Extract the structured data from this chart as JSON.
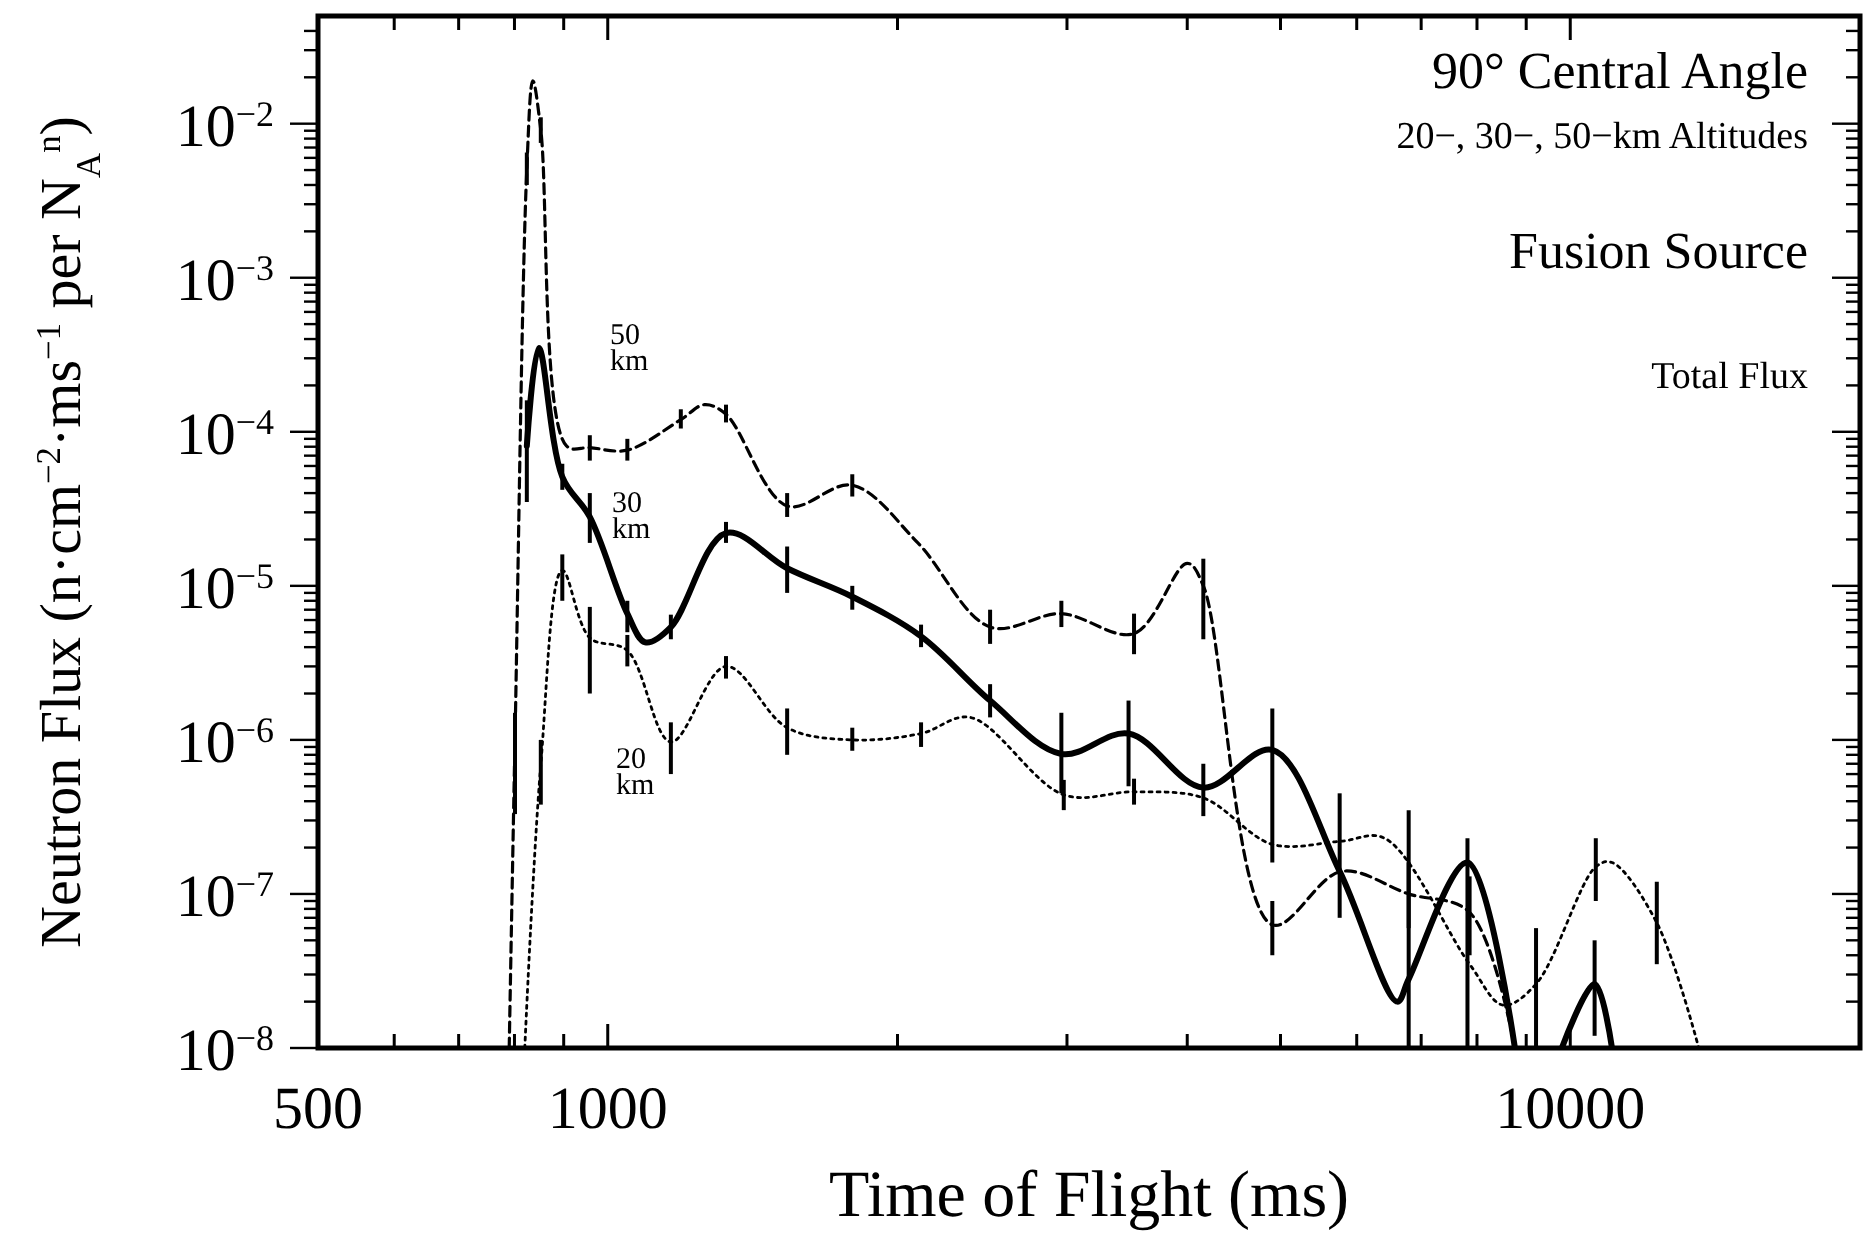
{
  "chart_data": {
    "type": "line",
    "xlabel": "Time of Flight (ms)",
    "ylabel": "Neutron Flux (n·cm$^{−2}$·ms$^{−1}$ per N$_{A}$$^{n}$)",
    "log": "xy",
    "grid": false,
    "xlim": [
      500,
      20000
    ],
    "xticks": [
      500,
      {
        "value": 600,
        "label": null
      },
      {
        "value": 700,
        "label": null
      },
      {
        "value": 800,
        "label": null
      },
      {
        "value": 900,
        "label": null
      },
      1000,
      {
        "value": 2000,
        "label": null
      },
      {
        "value": 3000,
        "label": null
      },
      {
        "value": 4000,
        "label": null
      },
      {
        "value": 5000,
        "label": null
      },
      {
        "value": 6000,
        "label": null
      },
      {
        "value": 7000,
        "label": null
      },
      {
        "value": 8000,
        "label": null
      },
      {
        "value": 9000,
        "label": null
      },
      10000
    ],
    "ylim": [
      1e-08,
      0.05
    ],
    "yticks": [
      {
        "value": 1e-08,
        "label": "10$^{−8}$"
      },
      {
        "value": 2e-08,
        "label": null
      },
      {
        "value": 3e-08,
        "label": null
      },
      {
        "value": 4e-08,
        "label": null
      },
      {
        "value": 5e-08,
        "label": null
      },
      {
        "value": 6e-08,
        "label": null
      },
      {
        "value": 7e-08,
        "label": null
      },
      {
        "value": 8e-08,
        "label": null
      },
      {
        "value": 9e-08,
        "label": null
      },
      {
        "value": 1e-07,
        "label": "10$^{−7}$"
      },
      {
        "value": 2e-07,
        "label": null
      },
      {
        "value": 3e-07,
        "label": null
      },
      {
        "value": 4e-07,
        "label": null
      },
      {
        "value": 5e-07,
        "label": null
      },
      {
        "value": 6e-07,
        "label": null
      },
      {
        "value": 7e-07,
        "label": null
      },
      {
        "value": 8e-07,
        "label": null
      },
      {
        "value": 9e-07,
        "label": null
      },
      {
        "value": 1e-06,
        "label": "10$^{−6}$"
      },
      {
        "value": 2e-06,
        "label": null
      },
      {
        "value": 3e-06,
        "label": null
      },
      {
        "value": 4e-06,
        "label": null
      },
      {
        "value": 5e-06,
        "label": null
      },
      {
        "value": 6e-06,
        "label": null
      },
      {
        "value": 7e-06,
        "label": null
      },
      {
        "value": 8e-06,
        "label": null
      },
      {
        "value": 9e-06,
        "label": null
      },
      {
        "value": 1e-05,
        "label": "10$^{−5}$"
      },
      {
        "value": 2e-05,
        "label": null
      },
      {
        "value": 3e-05,
        "label": null
      },
      {
        "value": 4e-05,
        "label": null
      },
      {
        "value": 5e-05,
        "label": null
      },
      {
        "value": 6e-05,
        "label": null
      },
      {
        "value": 7e-05,
        "label": null
      },
      {
        "value": 8e-05,
        "label": null
      },
      {
        "value": 9e-05,
        "label": null
      },
      {
        "value": 0.0001,
        "label": "10$^{−4}$"
      },
      {
        "value": 0.0002,
        "label": null
      },
      {
        "value": 0.0003,
        "label": null
      },
      {
        "value": 0.0004,
        "label": null
      },
      {
        "value": 0.0005,
        "label": null
      },
      {
        "value": 0.0006,
        "label": null
      },
      {
        "value": 0.0007,
        "label": null
      },
      {
        "value": 0.0008,
        "label": null
      },
      {
        "value": 0.0009,
        "label": null
      },
      {
        "value": 0.001,
        "label": "10$^{−3}$"
      },
      {
        "value": 0.002,
        "label": null
      },
      {
        "value": 0.003,
        "label": null
      },
      {
        "value": 0.004,
        "label": null
      },
      {
        "value": 0.005,
        "label": null
      },
      {
        "value": 0.006,
        "label": null
      },
      {
        "value": 0.007,
        "label": null
      },
      {
        "value": 0.008,
        "label": null
      },
      {
        "value": 0.009,
        "label": null
      },
      {
        "value": 0.01,
        "label": "10$^{−2}$"
      },
      {
        "value": 0.02,
        "label": null
      },
      {
        "value": 0.03,
        "label": null
      },
      {
        "value": 0.04,
        "label": null
      }
    ],
    "annotations": [
      "90° Central Angle",
      "20−, 30−, 50−km Altitudes",
      "Fusion Source",
      "Total Flux"
    ],
    "series": [
      {
        "name": "50 km",
        "color": "#000000",
        "line_style": "dashed",
        "x": [
          790,
          801,
          824,
          836,
          852,
          906,
          958,
          1048,
          1191,
          1260,
          1327,
          1536,
          1795,
          2100,
          2496,
          2960,
          3522,
          4000,
          4157,
          4903,
          5780,
          6794,
          7860,
          8760
        ],
        "values": [
          1e-08,
          1e-06,
          0.0051,
          0.019,
          0.0091,
          8.1e-05,
          7.9e-05,
          7.6e-05,
          0.00012,
          0.00015,
          0.00013,
          3.3e-05,
          4.5e-05,
          1.9e-05,
          5.4e-06,
          6.6e-06,
          4.9e-06,
          1.4e-05,
          1e-05,
          6.3e-08,
          1.4e-07,
          1e-07,
          7.6e-08,
          1e-08
        ],
        "errors": [
          null,
          [
            3.3e-07,
            1.5e-06
          ],
          [
            0.004,
            0.0065
          ],
          null,
          [
            0.0075,
            0.011
          ],
          null,
          [
            6.5e-05,
            9.5e-05
          ],
          [
            6.5e-05,
            9e-05
          ],
          [
            0.000105,
            0.00014
          ],
          null,
          [
            0.000115,
            0.00015
          ],
          [
            2.8e-05,
            4e-05
          ],
          [
            3.8e-05,
            5.3e-05
          ],
          null,
          [
            4.2e-06,
            7e-06
          ],
          [
            5.4e-06,
            8e-06
          ],
          [
            3.6e-06,
            6.6e-06
          ],
          null,
          [
            4.5e-06,
            1.5e-05
          ],
          [
            4e-08,
            9e-08
          ],
          null,
          [
            6e-08,
            1.6e-07
          ],
          [
            4e-08,
            1.3e-07
          ],
          null
        ]
      },
      {
        "name": "30 km",
        "color": "#000000",
        "line_style": "solid",
        "x": [
          824,
          848,
          897,
          958,
          1048,
          1094,
          1163,
          1327,
          1536,
          1795,
          2116,
          2496,
          2960,
          3476,
          4157,
          4903,
          5760,
          6610,
          6794,
          7820,
          8760,
          9300,
          9800,
          10600,
          11050
        ],
        "values": [
          8.1e-05,
          0.00035,
          5.1e-05,
          2.8e-05,
          6.6e-06,
          4.3e-06,
          5.4e-06,
          2.2e-05,
          1.3e-05,
          8.5e-06,
          4.7e-06,
          1.8e-06,
          8.1e-07,
          1.1e-06,
          4.9e-07,
          8.6e-07,
          1.4e-07,
          2e-08,
          2.8e-08,
          1.6e-07,
          1e-08,
          null,
          1e-08,
          2.6e-08,
          1e-08
        ],
        "errors": [
          [
            3.5e-05,
            0.00016
          ],
          null,
          [
            4.2e-05,
            6.2e-05
          ],
          [
            1.9e-05,
            4e-05
          ],
          [
            5e-06,
            8e-06
          ],
          null,
          [
            4.5e-06,
            6.5e-06
          ],
          [
            1.9e-05,
            2.6e-05
          ],
          [
            9e-06,
            1.8e-05
          ],
          [
            7e-06,
            1e-05
          ],
          [
            4e-06,
            5.6e-06
          ],
          [
            1.4e-06,
            2.3e-06
          ],
          [
            4.5e-07,
            1.5e-06
          ],
          [
            5e-07,
            1.8e-06
          ],
          [
            3.2e-07,
            7e-07
          ],
          [
            1.6e-07,
            1.6e-06
          ],
          [
            7e-08,
            4.5e-07
          ],
          null,
          [
            1e-08,
            3.5e-07
          ],
          [
            1e-08,
            2.3e-07
          ],
          null,
          null,
          null,
          [
            1.2e-08,
            5e-08
          ],
          null
        ]
      },
      {
        "name": "20 km",
        "color": "#000000",
        "line_style": "dotted",
        "x": [
          820,
          852,
          897,
          958,
          1048,
          1163,
          1327,
          1536,
          1795,
          2116,
          2380,
          2977,
          3522,
          4157,
          4903,
          5780,
          6414,
          7860,
          8514,
          9214,
          10630,
          11050,
          12300,
          13600
        ],
        "values": [
          1e-08,
          6.9e-07,
          1.26e-05,
          4.6e-06,
          3.8e-06,
          9.7e-07,
          3e-06,
          1.2e-06,
          1e-06,
          1.1e-06,
          1.4e-06,
          4.4e-07,
          4.6e-07,
          4.2e-07,
          2.1e-07,
          2.2e-07,
          2.3e-07,
          3.5e-08,
          1.9e-08,
          2.6e-08,
          1.5e-07,
          1.6e-07,
          6.5e-08,
          1e-08
        ],
        "errors": [
          null,
          [
            3.8e-07,
            1e-06
          ],
          [
            8e-06,
            1.6e-05
          ],
          [
            2e-06,
            7.3e-06
          ],
          [
            3e-06,
            4.8e-06
          ],
          [
            6e-07,
            1.3e-06
          ],
          [
            2.5e-06,
            3.5e-06
          ],
          [
            8e-07,
            1.6e-06
          ],
          [
            8.5e-07,
            1.2e-06
          ],
          [
            9e-07,
            1.3e-06
          ],
          null,
          [
            3.5e-07,
            5.5e-07
          ],
          [
            3.8e-07,
            5.6e-07
          ],
          null,
          null,
          null,
          null,
          null,
          null,
          [
            1e-08,
            6e-08
          ],
          [
            9e-08,
            2.3e-07
          ],
          null,
          [
            3.5e-08,
            1.2e-07
          ],
          null
        ]
      }
    ]
  }
}
